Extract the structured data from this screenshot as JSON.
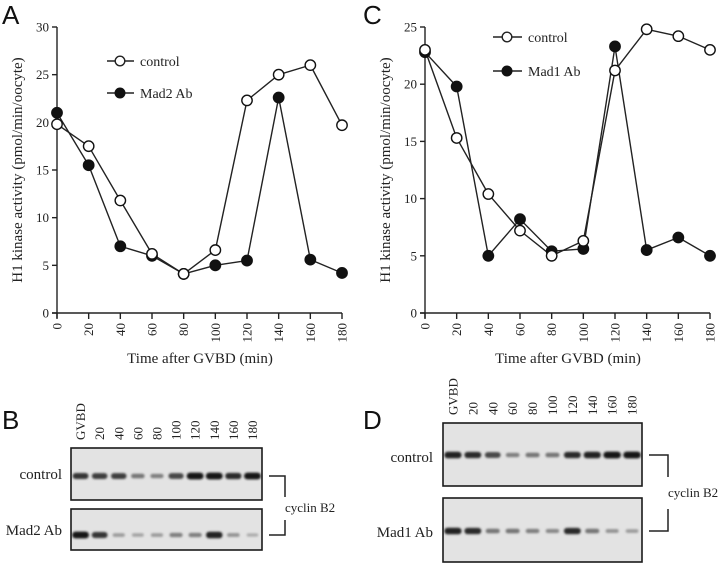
{
  "figure": {
    "panels": [
      "A",
      "B",
      "C",
      "D"
    ]
  },
  "chart_data": [
    {
      "panel": "A",
      "type": "line",
      "title": "",
      "xlabel": "Time after GVBD (min)",
      "ylabel": "H1 kinase activity (pmol/min/oocyte)",
      "x": [
        0,
        20,
        40,
        60,
        80,
        100,
        120,
        140,
        160,
        180
      ],
      "xticks": [
        "0",
        "20",
        "40",
        "60",
        "80",
        "100",
        "120",
        "140",
        "160",
        "180"
      ],
      "yticks": [
        "0",
        "5",
        "10",
        "15",
        "20",
        "25",
        "30"
      ],
      "xlim": [
        0,
        180
      ],
      "ylim": [
        0,
        30
      ],
      "grid": false,
      "legend_position": "top-left",
      "series": [
        {
          "name": "control",
          "marker": "open-circle",
          "values": [
            19.8,
            17.5,
            11.8,
            6.2,
            4.1,
            6.6,
            22.3,
            25.0,
            26.0,
            19.7
          ]
        },
        {
          "name": "Mad2 Ab",
          "marker": "filled-circle",
          "values": [
            21.0,
            15.5,
            7.0,
            6.0,
            4.1,
            5.0,
            5.5,
            22.6,
            5.6,
            4.2
          ]
        }
      ]
    },
    {
      "panel": "C",
      "type": "line",
      "title": "",
      "xlabel": "Time after GVBD (min)",
      "ylabel": "H1 kinase activity (pmol/min/oocyte)",
      "x": [
        0,
        20,
        40,
        60,
        80,
        100,
        120,
        140,
        160,
        180
      ],
      "xticks": [
        "0",
        "20",
        "40",
        "60",
        "80",
        "100",
        "120",
        "140",
        "160",
        "180"
      ],
      "yticks": [
        "0",
        "5",
        "10",
        "15",
        "20",
        "25"
      ],
      "xlim": [
        0,
        180
      ],
      "ylim": [
        0,
        25
      ],
      "grid": false,
      "legend_position": "top-center",
      "series": [
        {
          "name": "control",
          "marker": "open-circle",
          "values": [
            23.0,
            15.3,
            10.4,
            7.2,
            5.0,
            6.3,
            21.2,
            24.8,
            24.2,
            23.0
          ]
        },
        {
          "name": "Mad1 Ab",
          "marker": "filled-circle",
          "values": [
            22.8,
            19.8,
            5.0,
            8.2,
            5.4,
            5.6,
            23.3,
            5.5,
            6.6,
            5.0
          ]
        }
      ]
    }
  ],
  "blots": [
    {
      "panel": "B",
      "lanes": [
        "GVBD",
        "20",
        "40",
        "60",
        "80",
        "100",
        "120",
        "140",
        "160",
        "180"
      ],
      "rows": [
        {
          "label": "control",
          "intensities": [
            0.8,
            0.75,
            0.75,
            0.45,
            0.4,
            0.7,
            0.95,
            0.95,
            0.85,
            0.95
          ]
        },
        {
          "label": "Mad2 Ab",
          "intensities": [
            0.95,
            0.8,
            0.25,
            0.2,
            0.25,
            0.4,
            0.4,
            0.9,
            0.3,
            0.15
          ]
        }
      ],
      "bracket_label": "cyclin B2"
    },
    {
      "panel": "D",
      "lanes": [
        "GVBD",
        "20",
        "40",
        "60",
        "80",
        "100",
        "120",
        "140",
        "160",
        "180"
      ],
      "rows": [
        {
          "label": "control",
          "intensities": [
            0.9,
            0.85,
            0.7,
            0.4,
            0.45,
            0.45,
            0.85,
            0.9,
            0.95,
            0.95
          ]
        },
        {
          "label": "Mad1 Ab",
          "intensities": [
            0.9,
            0.85,
            0.45,
            0.45,
            0.4,
            0.35,
            0.85,
            0.45,
            0.3,
            0.25
          ]
        }
      ],
      "bracket_label": "cyclin B2"
    }
  ]
}
